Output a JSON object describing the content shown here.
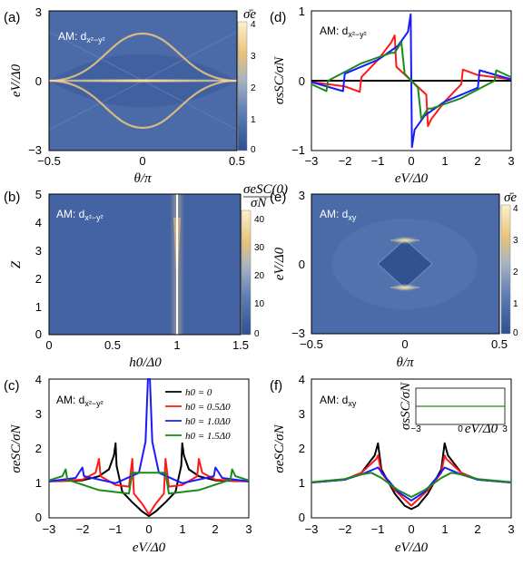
{
  "colors": {
    "heat_low": "#3a5a9c",
    "heat_mid": "#5c7db5",
    "heat_high": "#f5c97a",
    "heat_top": "#fbefc0",
    "black": "#000000",
    "red": "#ff1a1a",
    "blue": "#1a1aff",
    "green": "#1a8a1a",
    "am_text_white": "#ffffff"
  },
  "panels": {
    "a": {
      "label": "(a)",
      "am_text": "AM: d",
      "am_sub": "x²−y²",
      "ylabel": "eV/Δ0",
      "xlabel": "θ/π",
      "cb_title": "σ̄e",
      "xticks": [
        "−0.5",
        "0",
        "0.5"
      ],
      "yticks": [
        "3",
        "0",
        "−3"
      ],
      "cb_ticks": [
        "4",
        "3",
        "2",
        "1",
        "0"
      ]
    },
    "b": {
      "label": "(b)",
      "am_text": "AM: d",
      "am_sub": "x²−y²",
      "ylabel": "Z",
      "xlabel": "h0/Δ0",
      "cb_title_top": "σeSC(0)",
      "cb_title_bottom": "σN",
      "xticks": [
        "0",
        "0.5",
        "1",
        "1.5"
      ],
      "yticks": [
        "5",
        "4",
        "3",
        "2",
        "1",
        "0"
      ],
      "cb_ticks": [
        "40",
        "30",
        "20",
        "10",
        "0"
      ]
    },
    "c": {
      "label": "(c)",
      "am_text": "AM: d",
      "am_sub": "x²−y²",
      "ylabel": "σeSC/σN",
      "xlabel": "eV/Δ0",
      "xticks": [
        "−3",
        "−2",
        "−1",
        "0",
        "1",
        "2",
        "3"
      ],
      "yticks": [
        "4",
        "3",
        "2",
        "1",
        "0"
      ]
    },
    "d": {
      "label": "(d)",
      "am_text": "AM: d",
      "am_sub": "x²−y²",
      "ylabel": "σsSC/σN",
      "xlabel": "eV/Δ0",
      "xticks": [
        "−3",
        "−2",
        "−1",
        "0",
        "1",
        "2",
        "3"
      ],
      "yticks": [
        "1",
        "0",
        "−1"
      ]
    },
    "e": {
      "label": "(e)",
      "am_text": "AM: d",
      "am_sub": "xy",
      "ylabel": "eV/Δ0",
      "xlabel": "θ/π",
      "cb_title": "σ̄e",
      "xticks": [
        "−0.5",
        "0",
        "0.5"
      ],
      "yticks": [
        "3",
        "0",
        "−3"
      ],
      "cb_ticks": [
        "4",
        "3",
        "2",
        "1",
        "0"
      ]
    },
    "f": {
      "label": "(f)",
      "am_text": "AM: d",
      "am_sub": "xy",
      "ylabel": "σeSC/σN",
      "xlabel": "eV/Δ0",
      "xticks": [
        "−3",
        "−2",
        "−1",
        "0",
        "1",
        "2",
        "3"
      ],
      "yticks": [
        "4",
        "3",
        "2",
        "1",
        "0"
      ],
      "inset_ylabel": "σsSC/σN",
      "inset_xlabel": "eV/Δ0",
      "inset_xticks": [
        "−3",
        "0",
        "3"
      ]
    }
  },
  "legend": [
    {
      "text": "h0 = 0",
      "color": "#000000"
    },
    {
      "text": "h0 = 0.5Δ0",
      "color": "#ff1a1a"
    },
    {
      "text": "h0 = 1.0Δ0",
      "color": "#1a1aff"
    },
    {
      "text": "h0 = 1.5Δ0",
      "color": "#1a8a1a"
    }
  ],
  "chart_data": [
    {
      "panel": "a",
      "type": "heatmap",
      "x_range": [
        -0.5,
        0.5
      ],
      "y_range": [
        -3,
        3
      ],
      "z_range": [
        0,
        4
      ],
      "features": "bright ridge at eV=0 across all θ; arcs at eV=±2cos(πθ)-like, max |eV|≈2 at θ=0"
    },
    {
      "panel": "b",
      "type": "heatmap",
      "x_range": [
        0,
        1.5
      ],
      "y_range": [
        0,
        5
      ],
      "z_range": [
        0,
        40
      ],
      "features": "sharp bright line at h0/Δ0 = 1 for all Z"
    },
    {
      "panel": "c",
      "type": "line",
      "x_range": [
        -3,
        3
      ],
      "y_range": [
        0,
        4
      ],
      "series": [
        {
          "name": "h0 = 0",
          "color": "#000000",
          "points": [
            [
              -3,
              1.05
            ],
            [
              -2,
              1.08
            ],
            [
              -1.5,
              1.2
            ],
            [
              -1.2,
              1.4
            ],
            [
              -1.05,
              1.8
            ],
            [
              -1,
              2.15
            ],
            [
              -0.97,
              1.5
            ],
            [
              -0.8,
              0.75
            ],
            [
              -0.5,
              0.45
            ],
            [
              -0.2,
              0.18
            ],
            [
              0,
              0.05
            ],
            [
              0.2,
              0.18
            ],
            [
              0.5,
              0.45
            ],
            [
              0.8,
              0.75
            ],
            [
              0.97,
              1.5
            ],
            [
              1,
              2.15
            ],
            [
              1.05,
              1.8
            ],
            [
              1.2,
              1.4
            ],
            [
              1.5,
              1.2
            ],
            [
              2,
              1.08
            ],
            [
              3,
              1.05
            ]
          ]
        },
        {
          "name": "h0 = 0.5Δ0",
          "color": "#ff1a1a",
          "points": [
            [
              -3,
              1.05
            ],
            [
              -2,
              1.1
            ],
            [
              -1.6,
              1.3
            ],
            [
              -1.5,
              1.7
            ],
            [
              -1.45,
              1.2
            ],
            [
              -1,
              0.95
            ],
            [
              -0.6,
              0.9
            ],
            [
              -0.5,
              1.7
            ],
            [
              -0.45,
              0.7
            ],
            [
              -0.2,
              0.4
            ],
            [
              0,
              0.1
            ],
            [
              0.2,
              0.4
            ],
            [
              0.45,
              0.7
            ],
            [
              0.5,
              1.7
            ],
            [
              0.6,
              0.9
            ],
            [
              1,
              0.95
            ],
            [
              1.45,
              1.2
            ],
            [
              1.5,
              1.7
            ],
            [
              1.6,
              1.3
            ],
            [
              2,
              1.1
            ],
            [
              3,
              1.05
            ]
          ]
        },
        {
          "name": "h0 = 1.0Δ0",
          "color": "#1a1aff",
          "points": [
            [
              -3,
              1.05
            ],
            [
              -2.2,
              1.15
            ],
            [
              -2,
              1.45
            ],
            [
              -1.95,
              1.2
            ],
            [
              -1,
              1.0
            ],
            [
              -0.3,
              1.3
            ],
            [
              -0.1,
              2.2
            ],
            [
              -0.03,
              4
            ],
            [
              0.03,
              4
            ],
            [
              0.1,
              2.2
            ],
            [
              0.3,
              1.3
            ],
            [
              1,
              1.0
            ],
            [
              1.95,
              1.2
            ],
            [
              2,
              1.45
            ],
            [
              2.2,
              1.15
            ],
            [
              3,
              1.05
            ]
          ]
        },
        {
          "name": "h0 = 1.5Δ0",
          "color": "#1a8a1a",
          "points": [
            [
              -3,
              1.08
            ],
            [
              -2.6,
              1.2
            ],
            [
              -2.5,
              1.4
            ],
            [
              -2.45,
              1.1
            ],
            [
              -1.5,
              0.8
            ],
            [
              -0.6,
              0.7
            ],
            [
              -0.5,
              1.3
            ],
            [
              -0.3,
              1.3
            ],
            [
              0,
              1.3
            ],
            [
              0.3,
              1.3
            ],
            [
              0.5,
              1.3
            ],
            [
              0.6,
              0.7
            ],
            [
              1.5,
              0.8
            ],
            [
              2.45,
              1.1
            ],
            [
              2.5,
              1.4
            ],
            [
              2.6,
              1.2
            ],
            [
              3,
              1.08
            ]
          ]
        }
      ]
    },
    {
      "panel": "d",
      "type": "line",
      "x_range": [
        -3,
        3
      ],
      "y_range": [
        -1,
        1
      ],
      "series": [
        {
          "name": "h0 = 0",
          "color": "#000000",
          "points": [
            [
              -3,
              0
            ],
            [
              3,
              0
            ]
          ]
        },
        {
          "name": "h0 = 0.5Δ0",
          "color": "#ff1a1a",
          "points": [
            [
              -3,
              -0.02
            ],
            [
              -2,
              -0.08
            ],
            [
              -1.55,
              -0.16
            ],
            [
              -1.5,
              0.05
            ],
            [
              -1,
              0.3
            ],
            [
              -0.6,
              0.55
            ],
            [
              -0.5,
              0.65
            ],
            [
              -0.45,
              0.2
            ],
            [
              0,
              0
            ],
            [
              0.45,
              -0.2
            ],
            [
              0.5,
              -0.65
            ],
            [
              0.6,
              -0.55
            ],
            [
              1,
              -0.3
            ],
            [
              1.5,
              -0.05
            ],
            [
              1.55,
              0.16
            ],
            [
              2,
              0.08
            ],
            [
              3,
              0.02
            ]
          ]
        },
        {
          "name": "h0 = 1.0Δ0",
          "color": "#1a1aff",
          "points": [
            [
              -3,
              -0.02
            ],
            [
              -2.05,
              -0.15
            ],
            [
              -2,
              0.1
            ],
            [
              -1.5,
              0.2
            ],
            [
              -1,
              0.3
            ],
            [
              -0.4,
              0.5
            ],
            [
              -0.1,
              0.7
            ],
            [
              -0.02,
              0.95
            ],
            [
              0.02,
              -0.95
            ],
            [
              0.1,
              -0.7
            ],
            [
              0.4,
              -0.5
            ],
            [
              1,
              -0.3
            ],
            [
              1.5,
              -0.2
            ],
            [
              2,
              -0.1
            ],
            [
              2.05,
              0.15
            ],
            [
              3,
              0.02
            ]
          ]
        },
        {
          "name": "h0 = 1.5Δ0",
          "color": "#1a8a1a",
          "points": [
            [
              -3,
              -0.05
            ],
            [
              -2.55,
              -0.15
            ],
            [
              -2.5,
              0.0
            ],
            [
              -1.5,
              0.25
            ],
            [
              -0.6,
              0.4
            ],
            [
              -0.5,
              0.4
            ],
            [
              -0.3,
              0.55
            ],
            [
              -0.2,
              0.1
            ],
            [
              0,
              0
            ],
            [
              0.2,
              -0.1
            ],
            [
              0.3,
              -0.55
            ],
            [
              0.5,
              -0.4
            ],
            [
              0.6,
              -0.4
            ],
            [
              1.5,
              -0.25
            ],
            [
              2.5,
              0.0
            ],
            [
              2.55,
              0.15
            ],
            [
              3,
              0.05
            ]
          ]
        }
      ]
    },
    {
      "panel": "e",
      "type": "heatmap",
      "x_range": [
        -0.5,
        0.5
      ],
      "y_range": [
        -3,
        3
      ],
      "z_range": [
        0,
        4
      ],
      "features": "dark diamond centered at (0,0) with bright tips at eV=±1 on θ=0"
    },
    {
      "panel": "f",
      "type": "line",
      "x_range": [
        -3,
        3
      ],
      "y_range": [
        0,
        4
      ],
      "series": [
        {
          "name": "h0 = 0",
          "color": "#000000",
          "points": [
            [
              -3,
              1.02
            ],
            [
              -2,
              1.1
            ],
            [
              -1.5,
              1.3
            ],
            [
              -1.1,
              1.8
            ],
            [
              -1,
              2.15
            ],
            [
              -0.9,
              1.4
            ],
            [
              -0.5,
              0.7
            ],
            [
              -0.2,
              0.35
            ],
            [
              0,
              0.25
            ],
            [
              0.2,
              0.35
            ],
            [
              0.5,
              0.7
            ],
            [
              0.9,
              1.4
            ],
            [
              1,
              2.15
            ],
            [
              1.1,
              1.8
            ],
            [
              1.5,
              1.3
            ],
            [
              2,
              1.1
            ],
            [
              3,
              1.02
            ]
          ]
        },
        {
          "name": "h0 = 0.5Δ0",
          "color": "#ff1a1a",
          "points": [
            [
              -3,
              1.02
            ],
            [
              -2,
              1.1
            ],
            [
              -1.5,
              1.3
            ],
            [
              -1.05,
              1.7
            ],
            [
              -1,
              1.8
            ],
            [
              -0.9,
              1.3
            ],
            [
              -0.5,
              0.8
            ],
            [
              0,
              0.35
            ],
            [
              0.5,
              0.8
            ],
            [
              0.9,
              1.3
            ],
            [
              1,
              1.8
            ],
            [
              1.05,
              1.7
            ],
            [
              1.5,
              1.3
            ],
            [
              2,
              1.1
            ],
            [
              3,
              1.02
            ]
          ]
        },
        {
          "name": "h0 = 1.0Δ0",
          "color": "#1a1aff",
          "points": [
            [
              -3,
              1.02
            ],
            [
              -2,
              1.1
            ],
            [
              -1.5,
              1.25
            ],
            [
              -1,
              1.45
            ],
            [
              -0.8,
              1.2
            ],
            [
              -0.4,
              0.75
            ],
            [
              0,
              0.5
            ],
            [
              0.4,
              0.75
            ],
            [
              0.8,
              1.2
            ],
            [
              1,
              1.45
            ],
            [
              1.5,
              1.25
            ],
            [
              2,
              1.1
            ],
            [
              3,
              1.02
            ]
          ]
        },
        {
          "name": "h0 = 1.5Δ0",
          "color": "#1a8a1a",
          "points": [
            [
              -3,
              1.03
            ],
            [
              -2,
              1.12
            ],
            [
              -1.5,
              1.25
            ],
            [
              -1.2,
              1.3
            ],
            [
              -0.9,
              1.15
            ],
            [
              -0.4,
              0.8
            ],
            [
              0,
              0.6
            ],
            [
              0.4,
              0.8
            ],
            [
              0.9,
              1.15
            ],
            [
              1.2,
              1.3
            ],
            [
              1.5,
              1.25
            ],
            [
              2,
              1.12
            ],
            [
              3,
              1.03
            ]
          ]
        }
      ],
      "inset": {
        "type": "line",
        "x_range": [
          -3,
          3
        ],
        "y_const": 0,
        "color": "#1a8a1a"
      }
    }
  ]
}
